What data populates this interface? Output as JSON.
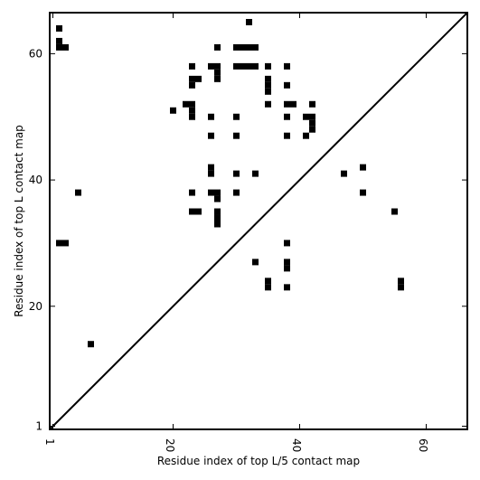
{
  "chart_data": {
    "type": "heatmap",
    "title": "",
    "xlabel": "Residue index of top L/5 contact map",
    "ylabel": "Residue index of top L contact map",
    "xlim": [
      0.5,
      66.5
    ],
    "ylim": [
      0.5,
      66.5
    ],
    "x_ticks": [
      1,
      20,
      40,
      60
    ],
    "y_ticks": [
      1,
      20,
      40,
      60
    ],
    "x_tick_labels": [
      "1",
      "20",
      "40",
      "60"
    ],
    "y_tick_labels": [
      "1",
      "20",
      "40",
      "60"
    ],
    "x_tick_rotation": -90,
    "diagonal": true,
    "cell_color": "#000000",
    "line_color": "#000000",
    "background_color": "#ffffff",
    "cells": [
      [
        2,
        64
      ],
      [
        2,
        62
      ],
      [
        2,
        61
      ],
      [
        3,
        61
      ],
      [
        2,
        30
      ],
      [
        3,
        30
      ],
      [
        5,
        38
      ],
      [
        7,
        14
      ],
      [
        20,
        51
      ],
      [
        22,
        52
      ],
      [
        23,
        52
      ],
      [
        23,
        51
      ],
      [
        23,
        50
      ],
      [
        23,
        58
      ],
      [
        23,
        56
      ],
      [
        24,
        56
      ],
      [
        23,
        55
      ],
      [
        23,
        38
      ],
      [
        23,
        35
      ],
      [
        24,
        35
      ],
      [
        26,
        58
      ],
      [
        27,
        58
      ],
      [
        27,
        57
      ],
      [
        27,
        56
      ],
      [
        27,
        61
      ],
      [
        26,
        50
      ],
      [
        26,
        47
      ],
      [
        26,
        42
      ],
      [
        26,
        41
      ],
      [
        26,
        38
      ],
      [
        27,
        38
      ],
      [
        27,
        37
      ],
      [
        27,
        35
      ],
      [
        27,
        34
      ],
      [
        27,
        33
      ],
      [
        30,
        61
      ],
      [
        31,
        61
      ],
      [
        32,
        61
      ],
      [
        33,
        61
      ],
      [
        32,
        65
      ],
      [
        30,
        58
      ],
      [
        31,
        58
      ],
      [
        32,
        58
      ],
      [
        33,
        58
      ],
      [
        30,
        50
      ],
      [
        30,
        47
      ],
      [
        30,
        41
      ],
      [
        30,
        38
      ],
      [
        33,
        41
      ],
      [
        33,
        27
      ],
      [
        35,
        58
      ],
      [
        35,
        56
      ],
      [
        35,
        55
      ],
      [
        35,
        54
      ],
      [
        35,
        52
      ],
      [
        35,
        24
      ],
      [
        35,
        23
      ],
      [
        38,
        58
      ],
      [
        38,
        55
      ],
      [
        38,
        52
      ],
      [
        39,
        52
      ],
      [
        38,
        50
      ],
      [
        38,
        47
      ],
      [
        38,
        30
      ],
      [
        38,
        27
      ],
      [
        38,
        26
      ],
      [
        38,
        23
      ],
      [
        41,
        50
      ],
      [
        42,
        50
      ],
      [
        42,
        49
      ],
      [
        42,
        48
      ],
      [
        42,
        52
      ],
      [
        41,
        47
      ],
      [
        47,
        41
      ],
      [
        50,
        42
      ],
      [
        50,
        38
      ],
      [
        55,
        35
      ],
      [
        56,
        24
      ],
      [
        56,
        23
      ]
    ]
  }
}
